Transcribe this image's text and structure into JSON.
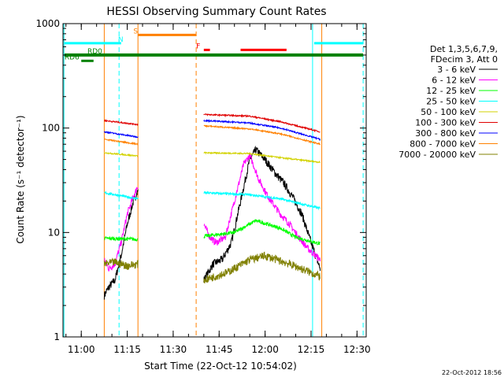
{
  "chart_data": {
    "type": "line",
    "title": "HESSI Observing Summary Count Rates",
    "xlabel": "Start Time (22-Oct-12 10:54:02)",
    "ylabel": "Count Rate (s⁻¹ detector⁻¹)",
    "yscale": "log",
    "xlim": [
      "10:54:02",
      "12:33:00"
    ],
    "ylim": [
      1,
      1000
    ],
    "x_ticks": [
      "11:00",
      "11:15",
      "11:30",
      "11:45",
      "12:00",
      "12:15",
      "12:30"
    ],
    "y_ticks": [
      "1",
      "10",
      "100",
      "1000"
    ],
    "footer_date": "22-Oct-2012 18:56",
    "legend": {
      "placement": "right",
      "header": [
        "Det 1,3,5,6,7,9,",
        "FDecim 3, Att 0"
      ],
      "entries": [
        {
          "label": "3 - 6 keV",
          "color": "#000000"
        },
        {
          "label": "6 - 12 keV",
          "color": "#ff00ff"
        },
        {
          "label": "12 - 25 keV",
          "color": "#00ff00"
        },
        {
          "label": "25 - 50 keV",
          "color": "#00ffff"
        },
        {
          "label": "50 - 100 keV",
          "color": "#d2d200"
        },
        {
          "label": "100 - 300 keV",
          "color": "#e00000"
        },
        {
          "label": "300 - 800 keV",
          "color": "#0000ff"
        },
        {
          "label": "800 - 7000 keV",
          "color": "#ff8000"
        },
        {
          "label": "7000 - 20000 keV",
          "color": "#808000"
        }
      ]
    },
    "flags": [
      {
        "label": "N",
        "color": "#00ffff",
        "level": 650,
        "segments": [
          [
            "10:54:30",
            "11:13:00"
          ],
          [
            "12:16:00",
            "12:32:00"
          ]
        ],
        "label_at": "11:12:00",
        "width": 3
      },
      {
        "label": "S",
        "color": "#ff8000",
        "level": 780,
        "segments": [
          [
            "11:18:30",
            "11:37:30"
          ]
        ],
        "label_at": "11:17:00",
        "width": 3
      },
      {
        "label": "F",
        "color": "#ff0000",
        "level": 560,
        "segments": [
          [
            "11:40:00",
            "11:42:00"
          ],
          [
            "11:52:00",
            "12:07:00"
          ]
        ],
        "label_at": "11:37:30",
        "width": 3
      },
      {
        "label": "RD0",
        "color": "#008000",
        "level": 500,
        "segments": [
          [
            "10:54:30",
            "12:32:00"
          ]
        ],
        "label_at": "11:02:00",
        "width": 4
      },
      {
        "label": "RD6",
        "color": "#008000",
        "level": 440,
        "segments": [
          [
            "11:00:00",
            "11:04:00"
          ]
        ],
        "label_at": "10:54:30",
        "width": 3
      }
    ],
    "vlines": [
      {
        "x": "10:54:20",
        "color": "#00ffff",
        "style": "solid"
      },
      {
        "x": "11:07:30",
        "color": "#ff8000",
        "style": "solid"
      },
      {
        "x": "11:12:20",
        "color": "#00ffff",
        "style": "dashed"
      },
      {
        "x": "11:18:30",
        "color": "#ff8000",
        "style": "solid"
      },
      {
        "x": "11:37:30",
        "color": "#ff8000",
        "style": "dashed"
      },
      {
        "x": "12:15:30",
        "color": "#00ffff",
        "style": "solid"
      },
      {
        "x": "12:18:30",
        "color": "#ff8000",
        "style": "solid"
      },
      {
        "x": "12:32:00",
        "color": "#00ffff",
        "style": "dashed"
      }
    ],
    "series": [
      {
        "name": "3 - 6 keV",
        "color": "#000000",
        "noise": 0.18,
        "segments": [
          [
            [
              "11:07:30",
              2.5
            ],
            [
              "11:09:00",
              3.0
            ],
            [
              "11:11:00",
              3.5
            ],
            [
              "11:13:00",
              6
            ],
            [
              "11:15:00",
              12
            ],
            [
              "11:17:00",
              20
            ],
            [
              "11:18:30",
              25
            ]
          ],
          [
            [
              "11:40:00",
              3.5
            ],
            [
              "11:43:00",
              5
            ],
            [
              "11:46:00",
              5.5
            ],
            [
              "11:49:00",
              8
            ],
            [
              "11:52:00",
              20
            ],
            [
              "11:55:00",
              50
            ],
            [
              "11:57:00",
              62
            ],
            [
              "12:00:00",
              50
            ],
            [
              "12:03:00",
              38
            ],
            [
              "12:06:00",
              30
            ],
            [
              "12:09:00",
              22
            ],
            [
              "12:12:00",
              15
            ],
            [
              "12:15:00",
              8
            ],
            [
              "12:18:00",
              4.5
            ]
          ]
        ]
      },
      {
        "name": "6 - 12 keV",
        "color": "#ff00ff",
        "noise": 0.15,
        "segments": [
          [
            [
              "11:07:30",
              5.5
            ],
            [
              "11:09:00",
              4.5
            ],
            [
              "11:11:00",
              5
            ],
            [
              "11:13:00",
              8
            ],
            [
              "11:15:00",
              15
            ],
            [
              "11:17:00",
              22
            ],
            [
              "11:18:30",
              28
            ]
          ],
          [
            [
              "11:40:00",
              12
            ],
            [
              "11:42:00",
              9
            ],
            [
              "11:44:00",
              8
            ],
            [
              "11:47:00",
              9
            ],
            [
              "11:50:00",
              20
            ],
            [
              "11:53:00",
              45
            ],
            [
              "11:55:00",
              55
            ],
            [
              "11:58:00",
              32
            ],
            [
              "12:01:00",
              22
            ],
            [
              "12:05:00",
              15
            ],
            [
              "12:08:00",
              12
            ],
            [
              "12:11:00",
              9
            ],
            [
              "12:14:00",
              7
            ],
            [
              "12:18:00",
              5.5
            ]
          ]
        ]
      },
      {
        "name": "12 - 25 keV",
        "color": "#00ff00",
        "noise": 0.08,
        "segments": [
          [
            [
              "11:07:30",
              8.8
            ],
            [
              "11:18:30",
              8.6
            ]
          ],
          [
            [
              "11:40:00",
              9.2
            ],
            [
              "11:50:00",
              10
            ],
            [
              "11:57:00",
              13
            ],
            [
              "12:05:00",
              11
            ],
            [
              "12:10:00",
              9
            ],
            [
              "12:18:00",
              7.8
            ]
          ]
        ]
      },
      {
        "name": "25 - 50 keV",
        "color": "#00ffff",
        "noise": 0.05,
        "segments": [
          [
            [
              "11:07:30",
              24
            ],
            [
              "11:18:30",
              21
            ]
          ],
          [
            [
              "11:40:00",
              24
            ],
            [
              "11:55:00",
              23
            ],
            [
              "12:05:00",
              21
            ],
            [
              "12:18:00",
              17
            ]
          ]
        ]
      },
      {
        "name": "50 - 100 keV",
        "color": "#d2d200",
        "noise": 0.03,
        "segments": [
          [
            [
              "11:07:30",
              58
            ],
            [
              "11:18:30",
              54
            ]
          ],
          [
            [
              "11:40:00",
              58
            ],
            [
              "11:55:00",
              57
            ],
            [
              "12:05:00",
              52
            ],
            [
              "12:18:00",
              47
            ]
          ]
        ]
      },
      {
        "name": "100 - 300 keV",
        "color": "#e00000",
        "noise": 0.03,
        "segments": [
          [
            [
              "11:07:30",
              118
            ],
            [
              "11:18:30",
              108
            ]
          ],
          [
            [
              "11:40:00",
              135
            ],
            [
              "11:55:00",
              130
            ],
            [
              "12:05:00",
              115
            ],
            [
              "12:18:00",
              92
            ]
          ]
        ]
      },
      {
        "name": "300 - 800 keV",
        "color": "#0000ff",
        "noise": 0.03,
        "segments": [
          [
            [
              "11:07:30",
              92
            ],
            [
              "11:18:30",
              82
            ]
          ],
          [
            [
              "11:40:00",
              118
            ],
            [
              "11:55:00",
              112
            ],
            [
              "12:05:00",
              100
            ],
            [
              "12:18:00",
              78
            ]
          ]
        ]
      },
      {
        "name": "800 - 7000 keV",
        "color": "#ff8000",
        "noise": 0.03,
        "segments": [
          [
            [
              "11:07:30",
              78
            ],
            [
              "11:18:30",
              70
            ]
          ],
          [
            [
              "11:40:00",
              105
            ],
            [
              "11:55:00",
              98
            ],
            [
              "12:05:00",
              88
            ],
            [
              "12:18:00",
              70
            ]
          ]
        ]
      },
      {
        "name": "7000 - 20000 keV",
        "color": "#808000",
        "noise": 0.18,
        "segments": [
          [
            [
              "11:07:30",
              5
            ],
            [
              "11:11:00",
              5.2
            ],
            [
              "11:15:00",
              4.8
            ],
            [
              "11:18:30",
              5
            ]
          ],
          [
            [
              "11:40:00",
              3.5
            ],
            [
              "11:48:00",
              4.2
            ],
            [
              "11:55:00",
              5.5
            ],
            [
              "12:00:00",
              6
            ],
            [
              "12:08:00",
              5
            ],
            [
              "12:18:00",
              3.8
            ]
          ]
        ]
      }
    ]
  }
}
